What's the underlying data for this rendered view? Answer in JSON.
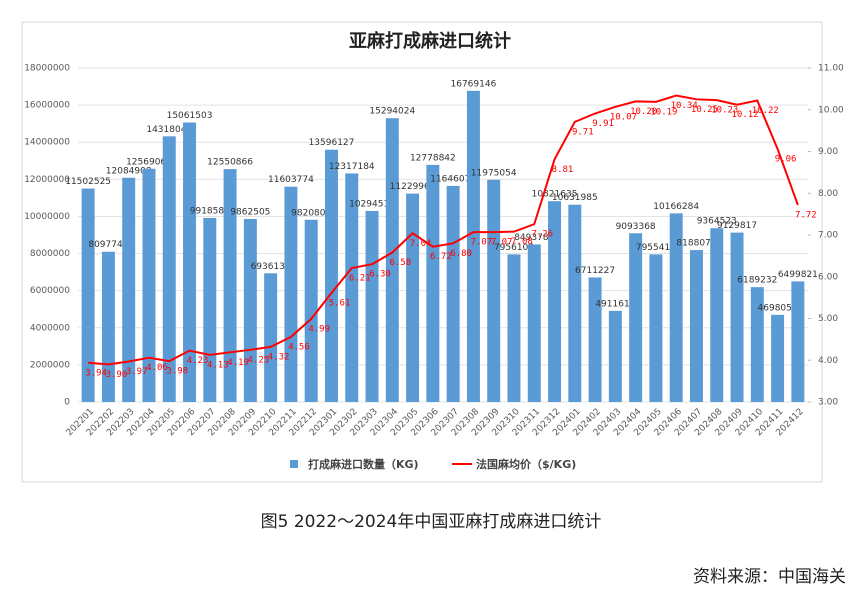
{
  "chart_data": {
    "type": "bar_line",
    "title": "亚麻打成麻进口统计",
    "categories": [
      "202201",
      "202202",
      "202203",
      "202204",
      "202205",
      "202206",
      "202207",
      "202208",
      "202209",
      "202210",
      "202211",
      "202212",
      "202301",
      "202302",
      "202303",
      "202304",
      "202305",
      "202306",
      "202307",
      "202308",
      "202309",
      "202310",
      "202311",
      "202312",
      "202401",
      "202402",
      "202403",
      "202404",
      "202405",
      "202406",
      "202407",
      "202408",
      "202409",
      "202410",
      "202411",
      "202412"
    ],
    "series": [
      {
        "name": "打成麻进口数量（KG)",
        "type": "bar",
        "color": "#5b9bd5",
        "values": [
          11502525,
          8097748,
          12084908,
          12569063,
          14318043,
          15061503,
          9918585,
          12550866,
          9862505,
          6936136,
          11603774,
          9820800,
          13596127,
          12317184,
          10294514,
          15294024,
          11229961,
          12778842,
          11646070,
          16769146,
          11975054,
          7956105,
          8493780,
          10821635,
          10631985,
          6711227,
          4911613,
          9093368,
          7955412,
          10166284,
          8188072,
          9364523,
          9129817,
          6189232,
          4698056,
          6499821
        ]
      },
      {
        "name": "法国麻均价（$/KG)",
        "type": "line",
        "axis": "y2",
        "color": "#ff0000",
        "values": [
          3.94,
          3.9,
          3.97,
          4.06,
          3.98,
          4.23,
          4.13,
          4.19,
          4.25,
          4.32,
          4.56,
          4.99,
          5.61,
          6.21,
          6.3,
          6.58,
          7.04,
          6.72,
          6.8,
          7.07,
          7.07,
          7.08,
          7.26,
          8.81,
          9.71,
          9.91,
          10.07,
          10.2,
          10.19,
          10.34,
          10.25,
          10.23,
          10.12,
          10.22,
          9.06,
          7.72
        ],
        "value_labels": [
          "3.94",
          "3.90",
          "3.97",
          "4.06",
          "3.98",
          "4.23",
          "4.13",
          "4.19",
          "4.25",
          "4.32",
          "4.56",
          "4.99",
          "5.61",
          "6.21",
          "6.30",
          "6.58",
          "7.04",
          "6.72",
          "6.80",
          "7.07",
          "7.07",
          "7.08",
          "7.26",
          "8.81",
          "9.71",
          "9.91",
          "10.07",
          "10.20",
          "10.19",
          "10.34",
          "10.25",
          "10.23",
          "10.12",
          "10.22",
          "9.06",
          "7.72"
        ]
      }
    ],
    "ylim": [
      0,
      18000000
    ],
    "yticks": [
      0,
      2000000,
      4000000,
      6000000,
      8000000,
      10000000,
      12000000,
      14000000,
      16000000,
      18000000
    ],
    "y2lim": [
      3,
      11
    ],
    "y2ticks": [
      {
        "value": 3,
        "label": "3.00"
      },
      {
        "value": 4,
        "label": "4.00"
      },
      {
        "value": 5,
        "label": "5.00"
      },
      {
        "value": 6,
        "label": "6.00"
      },
      {
        "value": 7,
        "label": "7.00"
      },
      {
        "value": 8,
        "label": "8.00"
      },
      {
        "value": 9,
        "label": "9.00"
      },
      {
        "value": 10,
        "label": "10.00"
      },
      {
        "value": 11,
        "label": "11.00"
      }
    ],
    "legend": "bottom",
    "caption": "图5  2022～2024年中国亚麻打成麻进口统计",
    "source": "资料来源：中国海关"
  }
}
